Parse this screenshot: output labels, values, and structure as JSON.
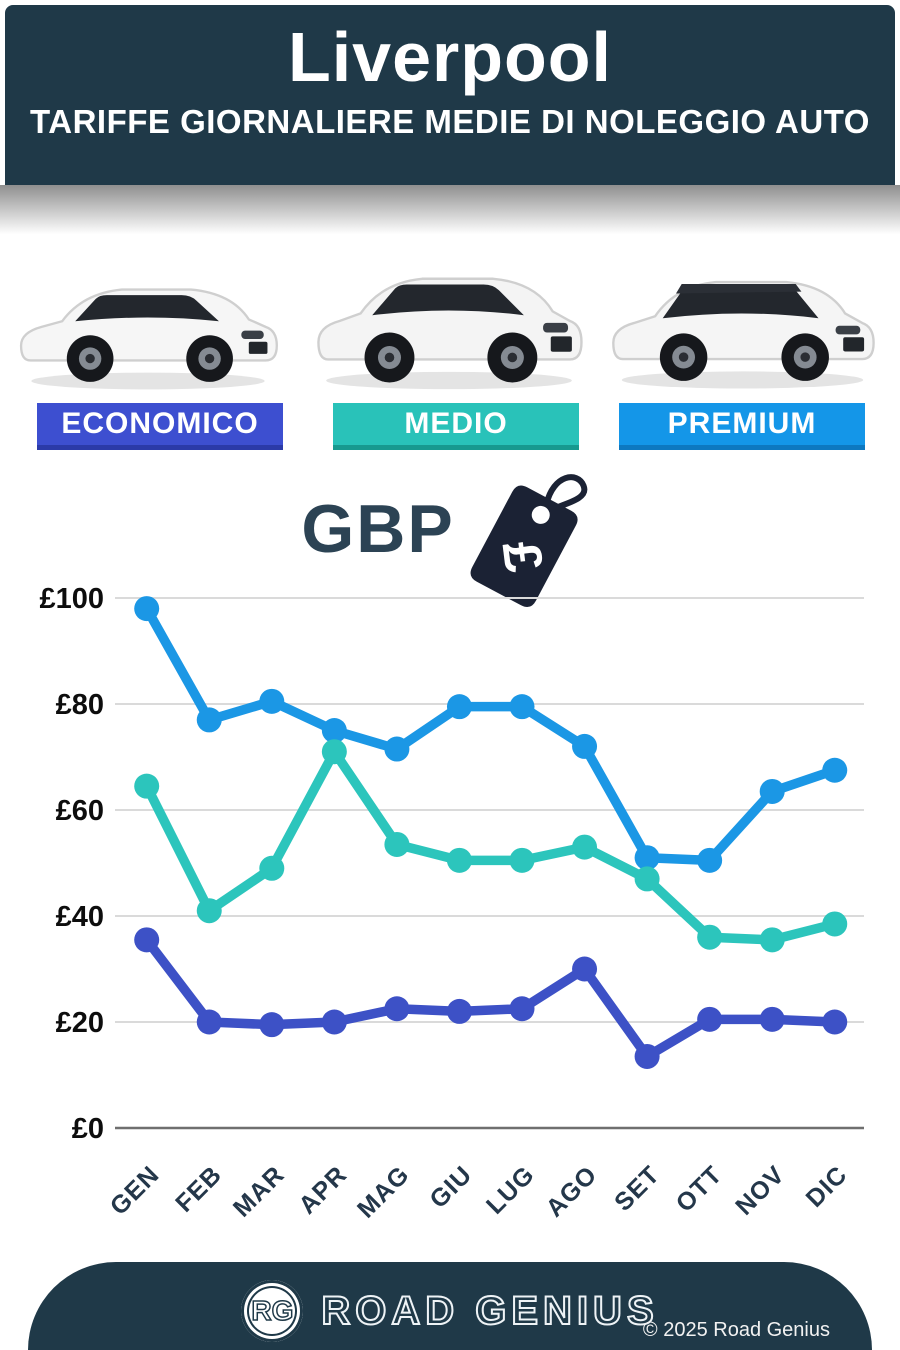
{
  "header": {
    "title": "Liverpool",
    "subtitle": "TARIFFE GIORNALIERE MEDIE DI NOLEGGIO AUTO"
  },
  "categories_labels": [
    {
      "label": "ECONOMICO",
      "color": "#3d4fd0",
      "edge": "#2b3aa8"
    },
    {
      "label": "MEDIO",
      "color": "#29c2b9",
      "edge": "#17998f"
    },
    {
      "label": "PREMIUM",
      "color": "#1496e8",
      "edge": "#0d78c0"
    }
  ],
  "currency": {
    "label": "GBP",
    "symbol": "£"
  },
  "chart_data": {
    "type": "line",
    "title": "Tariffe giornaliere medie di noleggio auto - Liverpool (GBP)",
    "categories": [
      "GEN",
      "FEB",
      "MAR",
      "APR",
      "MAG",
      "GIU",
      "LUG",
      "AGO",
      "SET",
      "OTT",
      "NOV",
      "DIC"
    ],
    "series": [
      {
        "name": "PREMIUM",
        "color": "#1b97e5",
        "values": [
          98,
          77,
          80.5,
          75,
          71.5,
          79.5,
          79.5,
          72,
          51,
          50.5,
          63.5,
          67.5
        ]
      },
      {
        "name": "MEDIO",
        "color": "#2cc5bc",
        "values": [
          64.5,
          41,
          49,
          71,
          53.5,
          50.5,
          50.5,
          53,
          47,
          36,
          35.5,
          38.5
        ]
      },
      {
        "name": "ECONOMICO",
        "color": "#3d51c6",
        "values": [
          35.5,
          20,
          19.5,
          20,
          22.5,
          22,
          22.5,
          30,
          13.5,
          20.5,
          20.5,
          20
        ]
      }
    ],
    "ylabel_prefix": "£",
    "yticks": [
      0,
      20,
      40,
      60,
      80,
      100
    ],
    "ylim": [
      0,
      100
    ],
    "grid": true,
    "legend_position": "none"
  },
  "footer": {
    "logo_initials": "RG",
    "brand": "ROAD GENIUS",
    "copyright": "© 2025 Road Genius"
  }
}
